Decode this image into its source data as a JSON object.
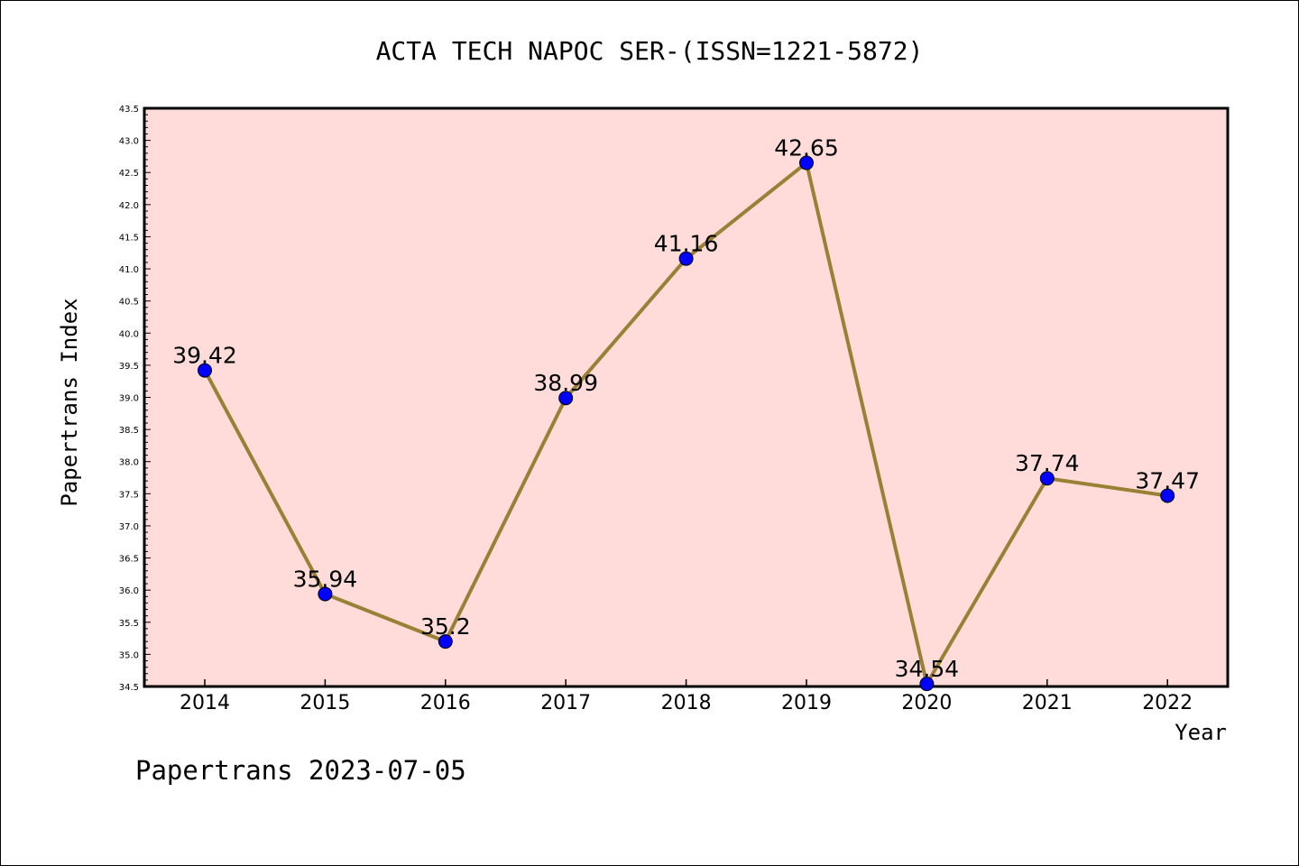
{
  "chart_data": {
    "type": "line",
    "title": "ACTA TECH NAPOC SER-(ISSN=1221-5872)",
    "xlabel": "Year",
    "ylabel": "Papertrans Index",
    "categories": [
      "2014",
      "2015",
      "2016",
      "2017",
      "2018",
      "2019",
      "2020",
      "2021",
      "2022"
    ],
    "series": [
      {
        "values": [
          39.42,
          35.94,
          35.2,
          38.99,
          41.16,
          42.65,
          34.54,
          37.74,
          37.47
        ],
        "labels": [
          "39.42",
          "35.94",
          "35.2",
          "38.99",
          "41.16",
          "42.65",
          "34.54",
          "37.74",
          "37.47"
        ]
      }
    ],
    "ylim": [
      34.5,
      43.5
    ],
    "yticks": [
      "34.5",
      "35.0",
      "35.5",
      "36.0",
      "36.5",
      "37.0",
      "37.5",
      "38.0",
      "38.5",
      "39.0",
      "39.5",
      "40.0",
      "40.5",
      "41.0",
      "41.5",
      "42.0",
      "42.5",
      "43.0",
      "43.5"
    ],
    "grid": false,
    "colors": {
      "plot_background": "#FFDCDA",
      "line": "#9A8035",
      "marker": "#0000FF"
    }
  },
  "footer": "Papertrans 2023-07-05"
}
